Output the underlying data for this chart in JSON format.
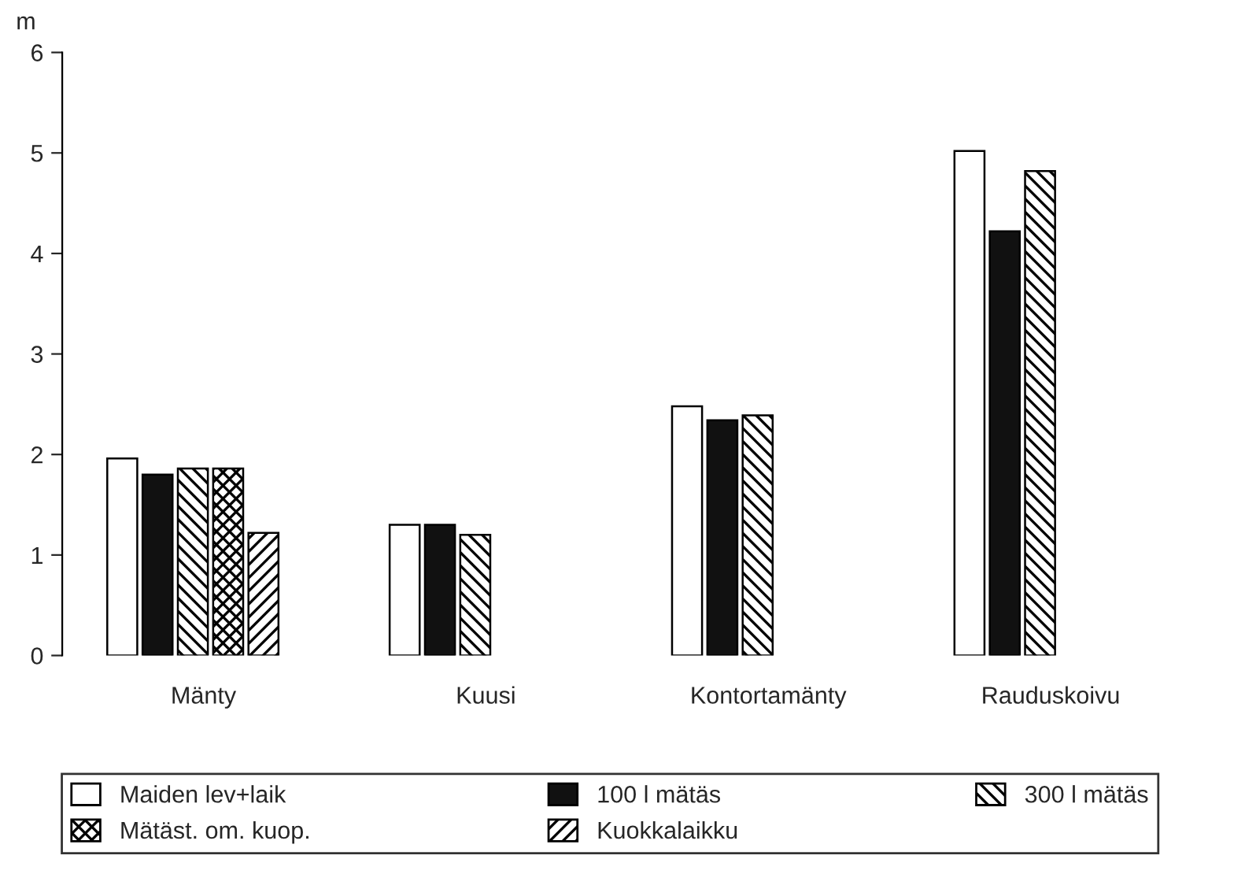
{
  "chart_data": {
    "type": "bar",
    "ylabel": "m",
    "categories": [
      "Mänty",
      "Kuusi",
      "Kontortamänty",
      "Rauduskoivu"
    ],
    "series": [
      {
        "name": "Maiden lev+laik",
        "color": "#ffffff",
        "values": [
          1.96,
          1.3,
          2.48,
          5.02
        ]
      },
      {
        "name": "100 l mätäs",
        "color": "#111111",
        "values": [
          1.8,
          1.3,
          2.34,
          4.22
        ]
      },
      {
        "name": "300 l mätäs",
        "color": "#000000",
        "values": [
          1.86,
          1.2,
          2.39,
          4.82
        ]
      },
      {
        "name": "Mätäst. om. kuop.",
        "color": "#000000",
        "values": [
          1.86,
          null,
          null,
          null
        ]
      },
      {
        "name": "Kuokkalaikku",
        "color": "#000000",
        "values": [
          1.22,
          null,
          null,
          null
        ]
      }
    ],
    "ylim": [
      0,
      6
    ],
    "yticks": [
      0,
      1,
      2,
      3,
      4,
      5,
      6
    ],
    "grid": false,
    "legend": "bottom"
  }
}
